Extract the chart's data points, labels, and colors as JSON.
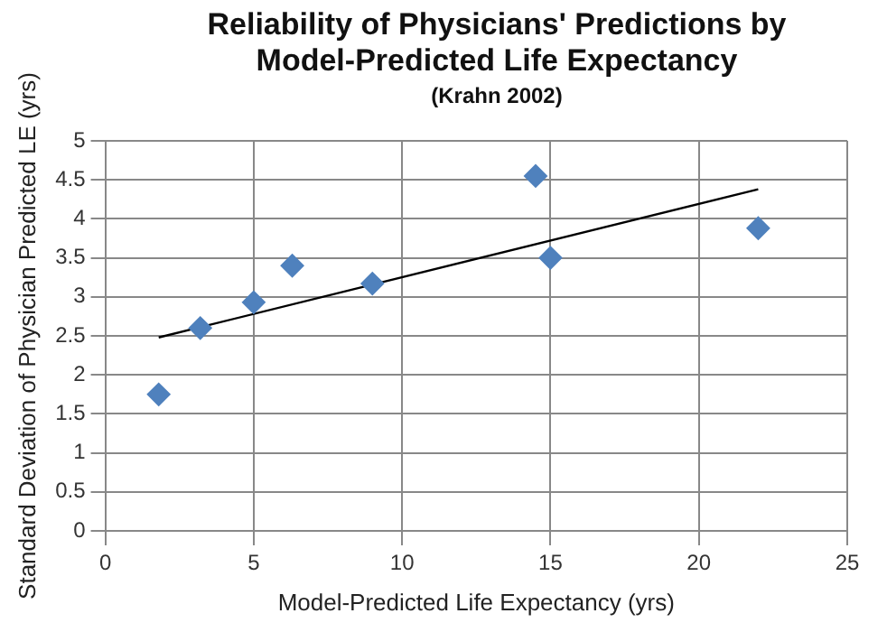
{
  "chart_data": {
    "type": "scatter",
    "title": "Reliability of Physicians' Predictions by Model-Predicted Life Expectancy",
    "subtitle": "(Krahn 2002)",
    "xlabel": "Model-Predicted Life Expectancy (yrs)",
    "ylabel": "Standard Deviation of Physician Predicted LE (yrs)",
    "marker": "diamond",
    "grid": true,
    "legend": false,
    "xlim": [
      0,
      25
    ],
    "xticks": [
      0,
      5,
      10,
      15,
      20,
      25
    ],
    "ylim": [
      0,
      5
    ],
    "yticks": [
      0,
      0.5,
      1,
      1.5,
      2,
      2.5,
      3,
      3.5,
      4,
      4.5,
      5
    ],
    "series": [
      {
        "color": "#4f81bd",
        "x": [
          1.8,
          3.2,
          5,
          6.3,
          9,
          14.5,
          15,
          22
        ],
        "values": [
          1.75,
          2.6,
          2.93,
          3.4,
          3.17,
          4.55,
          3.5,
          3.88
        ]
      },
      {
        "type": "line",
        "marker": "none",
        "color": "#000000",
        "x": [
          1.8,
          22
        ],
        "values": [
          2.48,
          4.38
        ]
      }
    ]
  }
}
